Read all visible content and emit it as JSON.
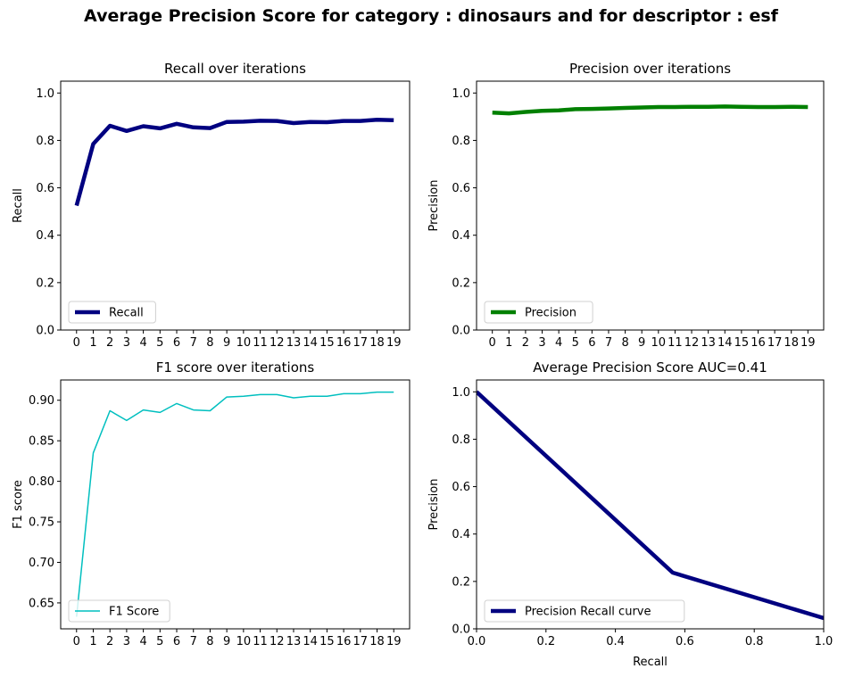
{
  "figure": {
    "suptitle": "Average Precision Score for category : dinosaurs and for descriptor : esf"
  },
  "chart_data": [
    {
      "type": "line",
      "title": "Recall over iterations",
      "xlabel": "",
      "ylabel": "Recall",
      "x": [
        0,
        1,
        2,
        3,
        4,
        5,
        6,
        7,
        8,
        9,
        10,
        11,
        12,
        13,
        14,
        15,
        16,
        17,
        18,
        19
      ],
      "xticks": [
        "0",
        "1",
        "2",
        "3",
        "4",
        "5",
        "6",
        "7",
        "8",
        "9",
        "10",
        "11",
        "12",
        "13",
        "14",
        "15",
        "16",
        "17",
        "18",
        "19"
      ],
      "yticks": [
        "0.0",
        "0.2",
        "0.4",
        "0.6",
        "0.8",
        "1.0"
      ],
      "ylim": [
        0,
        1.05
      ],
      "series": [
        {
          "name": "Recall",
          "color": "#000080",
          "linewidth": 4.5,
          "values": [
            0.525,
            0.785,
            0.862,
            0.84,
            0.86,
            0.851,
            0.87,
            0.855,
            0.852,
            0.878,
            0.879,
            0.883,
            0.882,
            0.873,
            0.878,
            0.877,
            0.882,
            0.882,
            0.887,
            0.885
          ]
        }
      ],
      "legend": "lower-left"
    },
    {
      "type": "line",
      "title": "Precision over iterations",
      "xlabel": "",
      "ylabel": "Precision",
      "x": [
        0,
        1,
        2,
        3,
        4,
        5,
        6,
        7,
        8,
        9,
        10,
        11,
        12,
        13,
        14,
        15,
        16,
        17,
        18,
        19
      ],
      "xticks": [
        "0",
        "1",
        "2",
        "3",
        "4",
        "5",
        "6",
        "7",
        "8",
        "9",
        "10",
        "11",
        "12",
        "13",
        "14",
        "15",
        "16",
        "17",
        "18",
        "19"
      ],
      "yticks": [
        "0.0",
        "0.2",
        "0.4",
        "0.6",
        "0.8",
        "1.0"
      ],
      "ylim": [
        0,
        1.05
      ],
      "series": [
        {
          "name": "Precision",
          "color": "#008000",
          "linewidth": 4.5,
          "values": [
            0.917,
            0.914,
            0.92,
            0.925,
            0.927,
            0.932,
            0.933,
            0.935,
            0.937,
            0.939,
            0.941,
            0.941,
            0.942,
            0.942,
            0.943,
            0.942,
            0.941,
            0.941,
            0.942,
            0.941
          ]
        }
      ],
      "legend": "lower-left"
    },
    {
      "type": "line",
      "title": "F1 score over iterations",
      "xlabel": "",
      "ylabel": "F1 score",
      "x": [
        0,
        1,
        2,
        3,
        4,
        5,
        6,
        7,
        8,
        9,
        10,
        11,
        12,
        13,
        14,
        15,
        16,
        17,
        18,
        19
      ],
      "xticks": [
        "0",
        "1",
        "2",
        "3",
        "4",
        "5",
        "6",
        "7",
        "8",
        "9",
        "10",
        "11",
        "12",
        "13",
        "14",
        "15",
        "16",
        "17",
        "18",
        "19"
      ],
      "yticks": [
        "0.65",
        "0.70",
        "0.75",
        "0.80",
        "0.85",
        "0.90"
      ],
      "ylim": [
        0.618,
        0.925
      ],
      "series": [
        {
          "name": "F1 Score",
          "color": "#00bfbf",
          "linewidth": 1.5,
          "values": [
            0.633,
            0.835,
            0.887,
            0.875,
            0.888,
            0.885,
            0.896,
            0.888,
            0.887,
            0.904,
            0.905,
            0.907,
            0.907,
            0.903,
            0.905,
            0.905,
            0.908,
            0.908,
            0.91,
            0.91
          ]
        }
      ],
      "legend": "lower-left"
    },
    {
      "type": "line",
      "title": "Average Precision Score AUC=0.41",
      "xlabel": "Recall",
      "ylabel": "Precision",
      "xlim": [
        0,
        1
      ],
      "ylim": [
        0,
        1.05
      ],
      "xticks": [
        "0.0",
        "0.2",
        "0.4",
        "0.6",
        "0.8",
        "1.0"
      ],
      "yticks": [
        "0.0",
        "0.2",
        "0.4",
        "0.6",
        "0.8",
        "1.0"
      ],
      "series": [
        {
          "name": "Precision Recall curve",
          "color": "#000080",
          "linewidth": 4.5,
          "x": [
            0.0,
            0.565,
            1.0
          ],
          "values": [
            1.0,
            0.237,
            0.045
          ]
        }
      ],
      "legend": "lower-left"
    }
  ]
}
